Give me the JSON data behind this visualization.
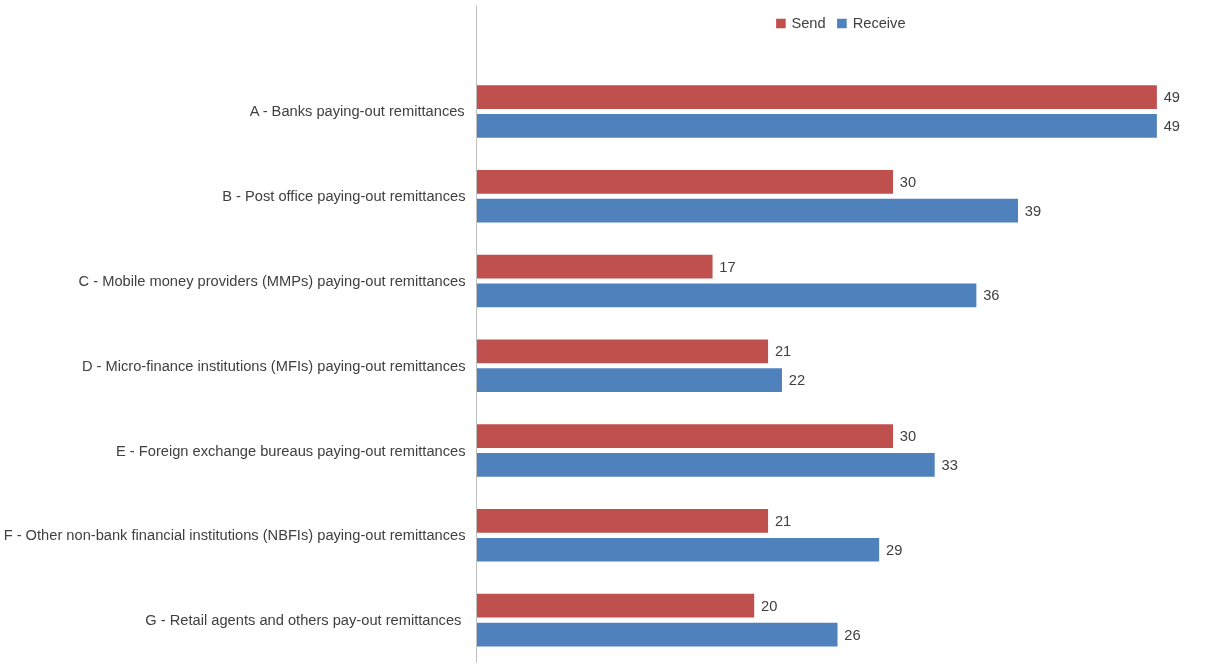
{
  "chart_data": {
    "type": "bar",
    "orientation": "horizontal",
    "data_labels": true,
    "legend": "top",
    "grid": false,
    "categories": [
      "A - Banks paying-out remittances",
      "B - Post office paying-out remittances",
      "C - Mobile money providers (MMPs) paying-out remittances",
      "D - Micro-finance institutions (MFIs) paying-out remittances",
      "E - Foreign exchange bureaus paying-out remittances",
      "F - Other non-bank financial institutions (NBFIs) paying-out remittances",
      "G - Retail agents and others  pay-out remittances"
    ],
    "series": [
      {
        "name": "Send",
        "color": "#c0504d",
        "values": [
          49,
          30,
          17,
          21,
          30,
          21,
          20
        ]
      },
      {
        "name": "Receive",
        "color": "#4f81bd",
        "values": [
          49,
          39,
          36,
          22,
          33,
          29,
          26
        ]
      }
    ]
  }
}
